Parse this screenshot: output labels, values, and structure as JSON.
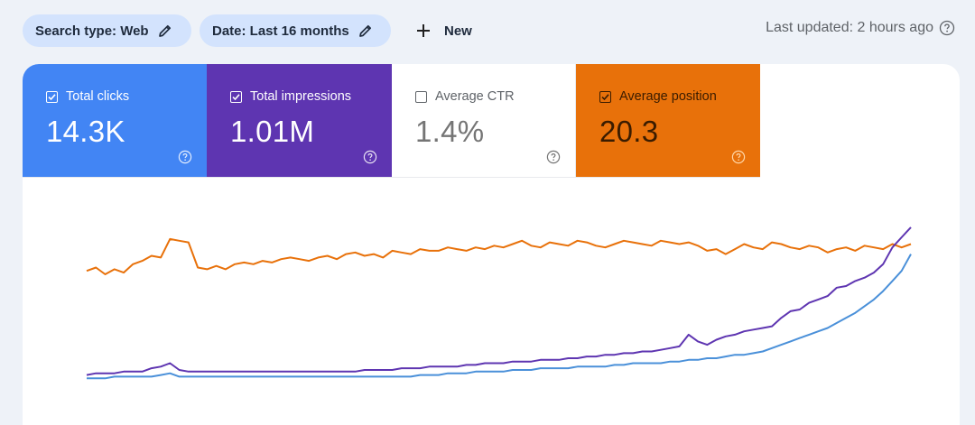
{
  "toolbar": {
    "search_type_chip": "Search type: Web",
    "date_chip": "Date: Last 16 months",
    "new_label": "New",
    "last_updated": "Last updated: 2 hours ago"
  },
  "metrics": [
    {
      "label": "Total clicks",
      "value": "14.3K",
      "checked": true,
      "color": "#4285f4"
    },
    {
      "label": "Total impressions",
      "value": "1.01M",
      "checked": true,
      "color": "#5e35b1"
    },
    {
      "label": "Average CTR",
      "value": "1.4%",
      "checked": false,
      "color": "#ffffff"
    },
    {
      "label": "Average position",
      "value": "20.3",
      "checked": true,
      "color": "#e8710a"
    }
  ],
  "chart_data": {
    "type": "line",
    "grid": false,
    "series": [
      {
        "name": "Average position",
        "color": "#e8710a",
        "values": [
          66,
          68,
          64,
          67,
          65,
          70,
          72,
          75,
          74,
          85,
          84,
          83,
          68,
          67,
          69,
          67,
          70,
          71,
          70,
          72,
          71,
          73,
          74,
          73,
          72,
          74,
          75,
          73,
          76,
          77,
          75,
          76,
          74,
          78,
          77,
          76,
          79,
          78,
          78,
          80,
          79,
          78,
          80,
          79,
          81,
          80,
          82,
          84,
          81,
          80,
          83,
          82,
          81,
          84,
          83,
          81,
          80,
          82,
          84,
          83,
          82,
          81,
          84,
          83,
          82,
          83,
          81,
          78,
          79,
          76,
          79,
          82,
          80,
          79,
          83,
          82,
          80,
          79,
          81,
          80,
          77,
          79,
          80,
          78,
          81,
          80,
          79,
          82,
          80,
          82
        ]
      },
      {
        "name": "Total impressions",
        "color": "#5e35b1",
        "values": [
          4,
          5,
          5,
          5,
          6,
          6,
          6,
          8,
          9,
          11,
          7,
          6,
          6,
          6,
          6,
          6,
          6,
          6,
          6,
          6,
          6,
          6,
          6,
          6,
          6,
          6,
          6,
          6,
          6,
          6,
          7,
          7,
          7,
          7,
          8,
          8,
          8,
          9,
          9,
          9,
          9,
          10,
          10,
          11,
          11,
          11,
          12,
          12,
          12,
          13,
          13,
          13,
          14,
          14,
          15,
          15,
          16,
          16,
          17,
          17,
          18,
          18,
          19,
          20,
          21,
          28,
          24,
          22,
          25,
          27,
          28,
          30,
          31,
          32,
          33,
          38,
          42,
          43,
          47,
          49,
          51,
          56,
          57,
          60,
          62,
          65,
          70,
          80,
          86,
          92
        ]
      },
      {
        "name": "Total clicks",
        "color": "#4a90d9",
        "values": [
          2,
          2,
          2,
          3,
          3,
          3,
          3,
          3,
          4,
          5,
          3,
          3,
          3,
          3,
          3,
          3,
          3,
          3,
          3,
          3,
          3,
          3,
          3,
          3,
          3,
          3,
          3,
          3,
          3,
          3,
          3,
          3,
          3,
          3,
          3,
          3,
          4,
          4,
          4,
          5,
          5,
          5,
          6,
          6,
          6,
          6,
          7,
          7,
          7,
          8,
          8,
          8,
          8,
          9,
          9,
          9,
          9,
          10,
          10,
          11,
          11,
          11,
          11,
          12,
          12,
          13,
          13,
          14,
          14,
          15,
          16,
          16,
          17,
          18,
          20,
          22,
          24,
          26,
          28,
          30,
          32,
          35,
          38,
          41,
          45,
          49,
          54,
          60,
          66,
          76
        ]
      }
    ]
  }
}
